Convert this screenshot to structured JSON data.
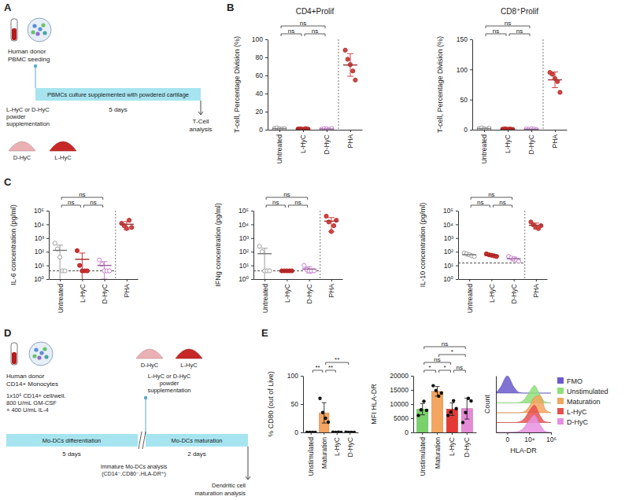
{
  "panel_labels": [
    "A",
    "B",
    "C",
    "D",
    "E"
  ],
  "diagrams": [
    {
      "donor": "Human donor",
      "seeding": "PBMC seeding",
      "supplement": [
        "L-HyC or D-HyC",
        "powder",
        "supplementation"
      ],
      "timeline": "PBMCs culture supplemented with powdered cartilage",
      "duration": "5 days",
      "endpoint": [
        "T-Cell",
        "analysis"
      ],
      "samples": [
        "D-HyC",
        "L-HyC"
      ]
    },
    {
      "donor": "Human donor",
      "cells": "CD14+ Monocytes",
      "conditions": [
        "1x10⁶ CD14+ cell/well.",
        "800 U/mL GM-CSF",
        "+ 400 U/mL IL-4"
      ],
      "samples": [
        "D-HyC",
        "L-HyC"
      ],
      "supplement": [
        "L-HyC or D-HyC",
        "powder",
        "supplementation"
      ],
      "stages": [
        "Mo-DCs differentiation",
        "Mo-DCs maturation"
      ],
      "durations": [
        "5 days",
        "2 days"
      ],
      "checkpoint": [
        "Immature Mo-DCs analysis",
        "(CD14⁻,CD80⁻,HLA-DR⁺)"
      ],
      "endpoint": [
        "Dendritic cell",
        "maturation analysis"
      ]
    }
  ],
  "chart_data": [
    {
      "type": "dot_plot",
      "title": "CD4+Prolif",
      "y_label": "T-cell, Percentage Division (%)",
      "categories": [
        "Untreated",
        "L-HyC",
        "D-HyC",
        "PHA"
      ],
      "groups": [
        {
          "color": "#9e9e9e",
          "marker": "open",
          "values": [
            1.5,
            2,
            1,
            0.8,
            1.2
          ],
          "mean": 1.3,
          "error": 0.5
        },
        {
          "color": "#d32f2f",
          "marker": "filled",
          "values": [
            0.8,
            1,
            0.5,
            1.2,
            0.7
          ],
          "mean": 0.84,
          "error": 0.27
        },
        {
          "color": "#c77dcc",
          "marker": "open",
          "values": [
            0.6,
            1.1,
            0.9,
            0.4,
            1.3
          ],
          "mean": 0.86,
          "error": 0.36
        },
        {
          "color": "#d84343",
          "marker": "filled",
          "values": [
            88,
            78,
            72,
            65,
            55
          ],
          "mean": 71.6,
          "error": 12.5
        }
      ],
      "ylim": [
        0,
        100
      ],
      "yticks": [
        0,
        20,
        40,
        60,
        80,
        100
      ],
      "annotations": [
        {
          "from": 0,
          "to": 1,
          "text": "ns"
        },
        {
          "from": 1,
          "to": 2,
          "text": "ns"
        },
        {
          "from": 0,
          "to": 2,
          "text": "ns"
        }
      ]
    },
    {
      "type": "dot_plot",
      "title": "CD8⁺Prolif",
      "y_label": "T-cell, Percentage Division (%)",
      "categories": [
        "Untreated",
        "L-HyC",
        "D-HyC",
        "PHA"
      ],
      "groups": [
        {
          "color": "#9e9e9e",
          "marker": "open",
          "values": [
            2,
            3,
            1.5,
            1,
            2.5
          ],
          "mean": 2,
          "error": 0.8
        },
        {
          "color": "#d32f2f",
          "marker": "filled",
          "values": [
            1,
            1.5,
            0.8,
            1.2,
            0.5
          ],
          "mean": 1,
          "error": 0.38
        },
        {
          "color": "#c77dcc",
          "marker": "open",
          "values": [
            1.2,
            0.7,
            1.5,
            1,
            0.6
          ],
          "mean": 1,
          "error": 0.37
        },
        {
          "color": "#d84343",
          "marker": "filled",
          "values": [
            95,
            92,
            85,
            80,
            62
          ],
          "mean": 82.8,
          "error": 13
        }
      ],
      "ylim": [
        0,
        150
      ],
      "yticks": [
        0,
        50,
        100,
        150
      ],
      "annotations": [
        {
          "from": 0,
          "to": 1,
          "text": "ns"
        },
        {
          "from": 1,
          "to": 2,
          "text": "ns"
        },
        {
          "from": 0,
          "to": 2,
          "text": "ns"
        }
      ]
    },
    {
      "type": "dot_plot",
      "y_label": "IL-6 concentration (pg/ml)",
      "log": "y",
      "categories": [
        "Untreated",
        "L-HyC",
        "D-HyC",
        "PHA"
      ],
      "groups": [
        {
          "color": "#9e9e9e",
          "marker": "open",
          "values": [
            420,
            160,
            40,
            4,
            4
          ],
          "mean": 126,
          "error": 175
        },
        {
          "color": "#d32f2f",
          "marker": "filled",
          "values": [
            120,
            10,
            4,
            4,
            4
          ],
          "mean": 28,
          "error": 52
        },
        {
          "color": "#c77dcc",
          "marker": "open",
          "values": [
            25,
            12,
            4,
            4,
            4
          ],
          "mean": 10,
          "error": 9
        },
        {
          "color": "#d84343",
          "marker": "filled",
          "values": [
            12000,
            8000,
            5000,
            20000,
            6000
          ],
          "mean": 10200,
          "error": 6000
        }
      ],
      "threshold": 4,
      "ylim": [
        1,
        100000
      ],
      "yticks": [
        {
          "value": 1,
          "label": "10⁰"
        },
        {
          "value": 10,
          "label": "10¹"
        },
        {
          "value": 100,
          "label": "10²"
        },
        {
          "value": 1000,
          "label": "10³"
        },
        {
          "value": 10000,
          "label": "10⁴"
        },
        {
          "value": 100000,
          "label": "10⁵"
        }
      ],
      "annotations": [
        {
          "from": 0,
          "to": 1,
          "text": "ns"
        },
        {
          "from": 1,
          "to": 2,
          "text": "ns"
        },
        {
          "from": 0,
          "to": 2,
          "text": "ns"
        }
      ]
    },
    {
      "type": "dot_plot",
      "y_label": "IFNg concentration (pg/ml)",
      "log": "y",
      "categories": [
        "Untreated",
        "L-HyC",
        "D-HyC",
        "PHA"
      ],
      "groups": [
        {
          "color": "#9e9e9e",
          "marker": "open",
          "values": [
            250,
            100,
            4,
            4,
            4
          ],
          "mean": 72,
          "error": 106
        },
        {
          "color": "#d32f2f",
          "marker": "filled",
          "values": [
            4,
            4,
            4,
            4,
            4
          ],
          "mean": 4,
          "error": 0
        },
        {
          "color": "#c77dcc",
          "marker": "open",
          "values": [
            10,
            5,
            4,
            4,
            4
          ],
          "mean": 5.4,
          "error": 2.6
        },
        {
          "color": "#d84343",
          "marker": "filled",
          "values": [
            40000,
            15000,
            3000,
            8000,
            20000
          ],
          "mean": 17200,
          "error": 14300
        }
      ],
      "threshold": 4,
      "ylim": [
        1,
        100000
      ],
      "yticks": [
        {
          "value": 1,
          "label": "10⁰"
        },
        {
          "value": 10,
          "label": "10¹"
        },
        {
          "value": 100,
          "label": "10²"
        },
        {
          "value": 1000,
          "label": "10³"
        },
        {
          "value": 10000,
          "label": "10⁴"
        },
        {
          "value": 100000,
          "label": "10⁵"
        }
      ],
      "annotations": [
        {
          "from": 0,
          "to": 1,
          "text": "ns"
        },
        {
          "from": 1,
          "to": 2,
          "text": "ns"
        },
        {
          "from": 0,
          "to": 2,
          "text": "ns"
        }
      ]
    },
    {
      "type": "dot_plot",
      "y_label": "IL-10 concentration (pg/ml)",
      "log": "y",
      "categories": [
        "Untreated",
        "L-HyC",
        "D-HyC",
        "PHA"
      ],
      "groups": [
        {
          "color": "#9e9e9e",
          "marker": "open",
          "values": [
            80,
            70,
            60,
            50,
            45
          ],
          "mean": 61,
          "error": 14
        },
        {
          "color": "#d32f2f",
          "marker": "filled",
          "values": [
            70,
            60,
            55,
            50,
            45
          ],
          "mean": 56,
          "error": 10
        },
        {
          "color": "#c77dcc",
          "marker": "open",
          "values": [
            45,
            35,
            30,
            25,
            20
          ],
          "mean": 31,
          "error": 10
        },
        {
          "color": "#d84343",
          "marker": "filled",
          "values": [
            15000,
            9000,
            6000,
            5000,
            8000
          ],
          "mean": 8600,
          "error": 3900
        }
      ],
      "threshold": 15,
      "ylim": [
        1,
        100000
      ],
      "yticks": [
        {
          "value": 1,
          "label": "10⁰"
        },
        {
          "value": 10,
          "label": "10¹"
        },
        {
          "value": 100,
          "label": "10²"
        },
        {
          "value": 1000,
          "label": "10³"
        },
        {
          "value": 10000,
          "label": "10⁴"
        },
        {
          "value": 100000,
          "label": "10⁵"
        }
      ],
      "annotations": [
        {
          "from": 0,
          "to": 1,
          "text": "ns"
        },
        {
          "from": 1,
          "to": 2,
          "text": "ns"
        },
        {
          "from": 0,
          "to": 2,
          "text": "ns"
        }
      ]
    },
    {
      "type": "bar",
      "y_label": "% CD80 (out of Live)",
      "categories": [
        "Unstimulated",
        "Maturation",
        "L-HyC",
        "D-HyC"
      ],
      "values": [
        0,
        34.5,
        0.3,
        0.2
      ],
      "errors": [
        0,
        18,
        0.3,
        0.2
      ],
      "points": [
        [
          0,
          0,
          0,
          0
        ],
        [
          60,
          35,
          25,
          18
        ],
        [
          0.5,
          0.2,
          0.3,
          0.1
        ],
        [
          0.3,
          0.2,
          0.1,
          0.2
        ]
      ],
      "colors": [
        "#7ad16b",
        "#f4a55f",
        "#e53935",
        "#e58ad6"
      ],
      "ylim": [
        0,
        100
      ],
      "yticks": [
        0,
        50,
        100
      ],
      "annotations": [
        {
          "from": 0,
          "to": 1,
          "text": "**"
        },
        {
          "from": 1,
          "to": 2,
          "text": "**"
        },
        {
          "from": 1,
          "to": 3,
          "text": "**"
        }
      ]
    },
    {
      "type": "bar",
      "y_label": "MFI HLA-DR",
      "categories": [
        "Unstimulated",
        "Maturation",
        "L-HyC",
        "D-HyC"
      ],
      "values": [
        8200,
        14500,
        8200,
        8400
      ],
      "errors": [
        2000,
        1700,
        2200,
        3700
      ],
      "points": [
        [
          6000,
          8000,
          11000,
          7800
        ],
        [
          16500,
          14800,
          12800,
          13900
        ],
        [
          6000,
          7200,
          11200,
          8400
        ],
        [
          3500,
          7000,
          12000,
          11100
        ]
      ],
      "colors": [
        "#7ad16b",
        "#f4a55f",
        "#e53935",
        "#e58ad6"
      ],
      "ylim": [
        0,
        20000
      ],
      "yticks": [
        0,
        5000,
        10000,
        15000,
        20000
      ],
      "annotations": [
        {
          "from": 0,
          "to": 1,
          "text": "*"
        },
        {
          "from": 1,
          "to": 2,
          "text": "*"
        },
        {
          "from": 2,
          "to": 3,
          "text": "ns"
        },
        {
          "from": 0,
          "to": 2,
          "text": "ns"
        },
        {
          "from": 1,
          "to": 3,
          "text": "*"
        },
        {
          "from": 0,
          "to": 3,
          "text": "ns"
        }
      ]
    },
    {
      "type": "density",
      "x_label": "HLA-DR",
      "y_label": "Count",
      "x": [
        -1000,
        -300,
        0,
        300,
        1000,
        3000,
        10000,
        30000,
        100000,
        300000,
        1000000
      ],
      "series": [
        {
          "name": "FMO",
          "color": "#6a5acd",
          "values": [
            0,
            0.35,
            1,
            0.35,
            0.05,
            0,
            0,
            0,
            0,
            0,
            0
          ]
        },
        {
          "name": "Unstimulated",
          "color": "#8ee07a",
          "values": [
            0,
            0,
            0,
            0,
            0.02,
            0.15,
            0.6,
            1,
            0.45,
            0.05,
            0
          ]
        },
        {
          "name": "Maturation",
          "color": "#f4a55f",
          "values": [
            0,
            0,
            0,
            0,
            0,
            0.05,
            0.35,
            0.9,
            1,
            0.2,
            0
          ]
        },
        {
          "name": "L-HyC",
          "color": "#e85050",
          "values": [
            0,
            0,
            0,
            0,
            0.03,
            0.18,
            0.65,
            1,
            0.4,
            0.04,
            0
          ]
        },
        {
          "name": "D-HyC",
          "color": "#e890e0",
          "values": [
            0,
            0,
            0,
            0.02,
            0.06,
            0.25,
            0.7,
            1,
            0.45,
            0.06,
            0
          ]
        }
      ],
      "xlim": [
        -1000,
        1000000
      ],
      "xticks": [
        0,
        {
          "value": 10000,
          "label": "10⁴"
        },
        {
          "value": 1000000,
          "label": "10⁶"
        }
      ],
      "ylim": [
        0,
        1
      ],
      "tick_labels": "x",
      "legend": "right"
    }
  ]
}
